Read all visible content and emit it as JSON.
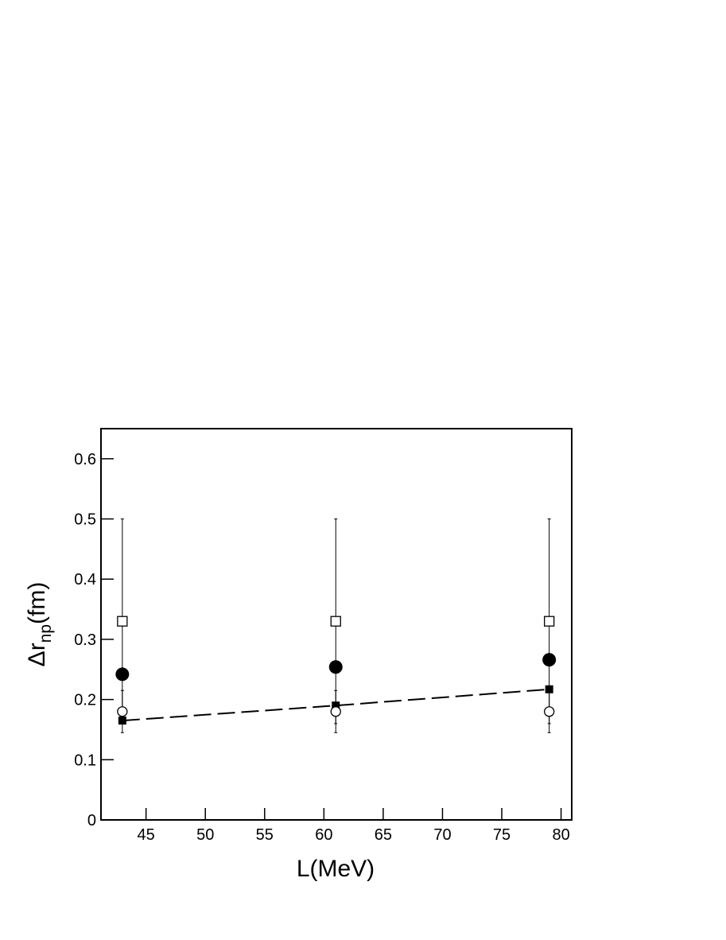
{
  "chart_data": {
    "type": "scatter",
    "xlabel": "L(MeV)",
    "ylabel": [
      "Δr",
      "np",
      "(fm)"
    ],
    "x": [
      43,
      61,
      79
    ],
    "series": [
      {
        "marker": "open-square",
        "color": "#000000",
        "values": [
          0.33,
          0.33,
          0.33
        ],
        "errors": [
          0.17,
          0.17,
          0.17
        ]
      },
      {
        "marker": "filled-circle",
        "color": "#000000",
        "values": [
          0.242,
          0.254,
          0.266
        ]
      },
      {
        "marker": "filled-square",
        "color": "#000000",
        "values": [
          0.165,
          0.19,
          0.217
        ],
        "line": "dashed"
      },
      {
        "marker": "open-circle",
        "color": "#000000",
        "values": [
          0.18,
          0.18,
          0.18
        ],
        "errors": [
          0.035,
          0.035,
          0.035
        ]
      }
    ],
    "xlim": [
      41.2,
      80.9
    ],
    "ylim": [
      0,
      0.65
    ],
    "xticks": [
      45,
      50,
      55,
      60,
      65,
      70,
      75,
      80
    ],
    "yticks": [
      0,
      0.1,
      0.2,
      0.3,
      0.4,
      0.5,
      0.6
    ]
  }
}
